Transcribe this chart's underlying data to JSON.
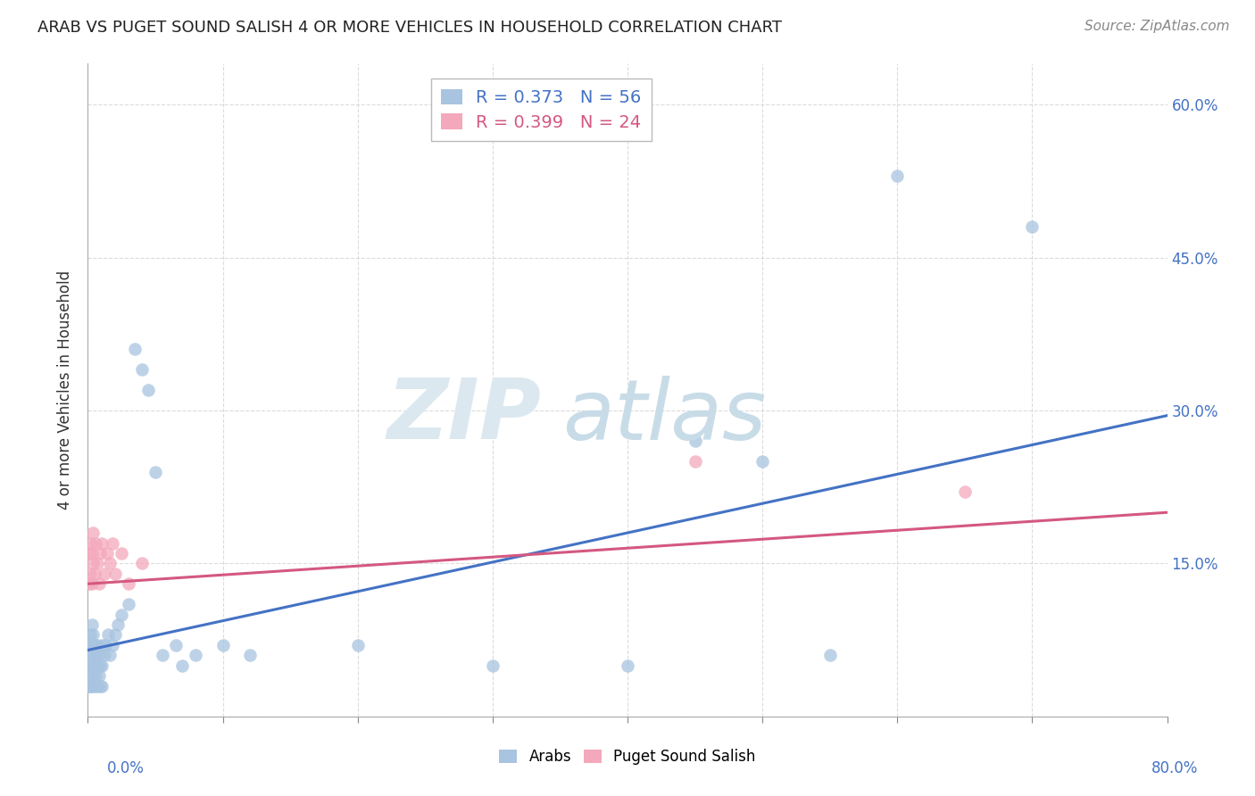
{
  "title": "ARAB VS PUGET SOUND SALISH 4 OR MORE VEHICLES IN HOUSEHOLD CORRELATION CHART",
  "source": "Source: ZipAtlas.com",
  "ylabel": "4 or more Vehicles in Household",
  "legend_arab_r": 0.373,
  "legend_arab_n": 56,
  "legend_pss_r": 0.399,
  "legend_pss_n": 24,
  "arab_color": "#a8c4e0",
  "pss_color": "#f4a8bc",
  "arab_line_color": "#4472c4",
  "pss_line_color": "#d45880",
  "xlim": [
    0.0,
    0.8
  ],
  "ylim": [
    0.0,
    0.64
  ],
  "arab_x": [
    0.001,
    0.001,
    0.001,
    0.002,
    0.002,
    0.002,
    0.002,
    0.003,
    0.003,
    0.003,
    0.003,
    0.004,
    0.004,
    0.004,
    0.005,
    0.005,
    0.005,
    0.006,
    0.006,
    0.007,
    0.007,
    0.007,
    0.008,
    0.008,
    0.009,
    0.009,
    0.01,
    0.01,
    0.01,
    0.012,
    0.013,
    0.015,
    0.016,
    0.018,
    0.02,
    0.022,
    0.025,
    0.03,
    0.035,
    0.04,
    0.045,
    0.05,
    0.055,
    0.065,
    0.07,
    0.08,
    0.1,
    0.12,
    0.2,
    0.3,
    0.4,
    0.45,
    0.5,
    0.55,
    0.6,
    0.7
  ],
  "arab_y": [
    0.03,
    0.05,
    0.07,
    0.03,
    0.04,
    0.06,
    0.08,
    0.03,
    0.05,
    0.07,
    0.09,
    0.04,
    0.06,
    0.08,
    0.03,
    0.05,
    0.07,
    0.04,
    0.06,
    0.03,
    0.05,
    0.07,
    0.04,
    0.06,
    0.03,
    0.05,
    0.03,
    0.05,
    0.07,
    0.06,
    0.07,
    0.08,
    0.06,
    0.07,
    0.08,
    0.09,
    0.1,
    0.11,
    0.36,
    0.34,
    0.32,
    0.24,
    0.06,
    0.07,
    0.05,
    0.06,
    0.07,
    0.06,
    0.07,
    0.05,
    0.05,
    0.27,
    0.25,
    0.06,
    0.53,
    0.48
  ],
  "pss_x": [
    0.001,
    0.001,
    0.002,
    0.002,
    0.003,
    0.003,
    0.004,
    0.004,
    0.005,
    0.006,
    0.007,
    0.008,
    0.009,
    0.01,
    0.012,
    0.014,
    0.016,
    0.018,
    0.02,
    0.025,
    0.03,
    0.04,
    0.45,
    0.65
  ],
  "pss_y": [
    0.13,
    0.16,
    0.14,
    0.17,
    0.13,
    0.16,
    0.15,
    0.18,
    0.14,
    0.17,
    0.15,
    0.13,
    0.16,
    0.17,
    0.14,
    0.16,
    0.15,
    0.17,
    0.14,
    0.16,
    0.13,
    0.15,
    0.25,
    0.22
  ],
  "arab_line_x0": 0.0,
  "arab_line_y0": 0.065,
  "arab_line_x1": 0.8,
  "arab_line_y1": 0.295,
  "pss_line_x0": 0.0,
  "pss_line_y0": 0.13,
  "pss_line_x1": 0.8,
  "pss_line_y1": 0.2,
  "x_tick_positions": [
    0.0,
    0.1,
    0.2,
    0.3,
    0.4,
    0.5,
    0.6,
    0.7,
    0.8
  ],
  "y_tick_positions": [
    0.0,
    0.15,
    0.3,
    0.45,
    0.6
  ],
  "y_tick_labels": [
    "",
    "15.0%",
    "30.0%",
    "45.0%",
    "60.0%"
  ],
  "grid_color": "#d8d8d8",
  "title_fontsize": 13,
  "source_fontsize": 11,
  "tick_label_fontsize": 12,
  "ylabel_fontsize": 12
}
